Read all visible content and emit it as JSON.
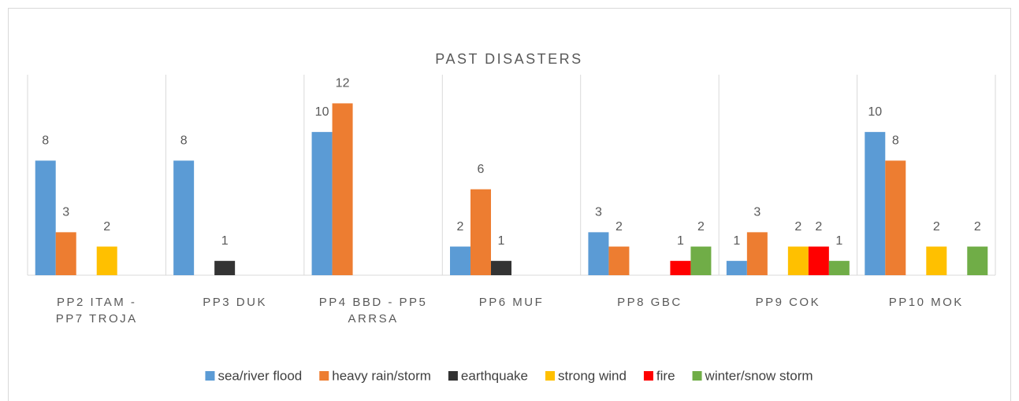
{
  "chart_data": {
    "type": "bar",
    "title": "PAST DISASTERS",
    "categories": [
      "PP2 ITAM - PP7 TROJA",
      "PP3 DUK",
      "PP4 BBD - PP5 ARRSA",
      "PP6 MUF",
      "PP8 GBC",
      "PP9 COK",
      "PP10 MOK"
    ],
    "series": [
      {
        "name": "sea/river flood",
        "color": "#5b9bd5",
        "values": [
          8,
          8,
          10,
          2,
          3,
          1,
          10
        ]
      },
      {
        "name": "heavy rain/storm",
        "color": "#ed7d31",
        "values": [
          3,
          null,
          12,
          6,
          2,
          3,
          8
        ]
      },
      {
        "name": "earthquake",
        "color": "#333333",
        "values": [
          null,
          1,
          null,
          1,
          null,
          null,
          null
        ]
      },
      {
        "name": "strong wind",
        "color": "#ffc000",
        "values": [
          2,
          null,
          null,
          null,
          null,
          2,
          2
        ]
      },
      {
        "name": "fire",
        "color": "#ff0000",
        "values": [
          null,
          null,
          null,
          null,
          1,
          2,
          null
        ]
      },
      {
        "name": "winter/snow storm",
        "color": "#70ad47",
        "values": [
          null,
          null,
          null,
          null,
          2,
          1,
          2
        ]
      }
    ],
    "ylim": [
      0,
      14
    ],
    "legend": "bottom"
  }
}
